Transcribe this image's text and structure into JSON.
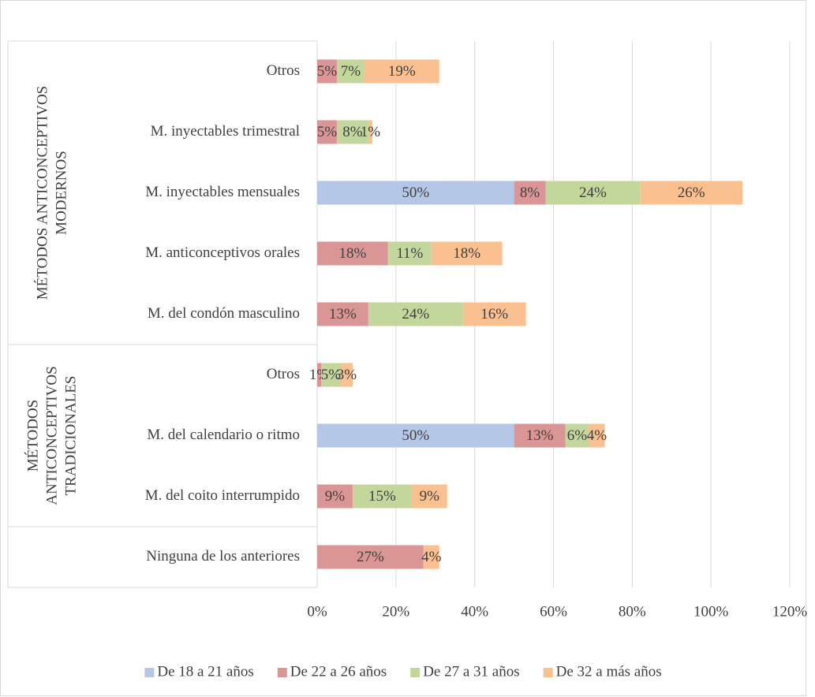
{
  "chart_data": {
    "type": "stacked-bar-horizontal",
    "groups": [
      {
        "label": "MÉTODOS ANTICONCEPTIVOS MODERNOS",
        "categories": [
          "Otros",
          "M. inyectables trimestral",
          "M. inyectables mensuales",
          "M. anticonceptivos orales",
          "M. del condón masculino"
        ]
      },
      {
        "label": "MÉTODOS ANTICONCEPTIVOS TRADICIONALES",
        "categories": [
          "Otros",
          "M. del calendario o ritmo",
          "M. del coito interrumpido"
        ]
      },
      {
        "label": null,
        "categories": [
          "Ninguna de los anteriores"
        ]
      }
    ],
    "series": [
      {
        "name": "De 18 a 21 años",
        "color": "#b4c7e7",
        "values": [
          null,
          null,
          50,
          null,
          null,
          null,
          50,
          null,
          null
        ]
      },
      {
        "name": "De 22 a 26 años",
        "color": "#da9694",
        "values": [
          5,
          5,
          8,
          18,
          13,
          1,
          13,
          9,
          27
        ]
      },
      {
        "name": "De 27 a 31 años",
        "color": "#c3d69b",
        "values": [
          7,
          8,
          24,
          11,
          24,
          5,
          6,
          15,
          null
        ]
      },
      {
        "name": "De 32 a más años",
        "color": "#fac090",
        "values": [
          19,
          1,
          26,
          18,
          16,
          3,
          4,
          9,
          4
        ]
      }
    ],
    "value_labels": [
      [
        null,
        null,
        "50%",
        null,
        null,
        null,
        "50%",
        null,
        null
      ],
      [
        "5%",
        "5%",
        "8%",
        "18%",
        "13%",
        "1%",
        "13%",
        "9%",
        "27%"
      ],
      [
        "7%",
        "8%",
        "24%",
        "11%",
        "24%",
        "5%",
        "6%",
        "15%",
        null
      ],
      [
        "19%",
        "1%",
        "26%",
        "18%",
        "16%",
        "3%",
        "4%",
        "9%",
        "4%"
      ]
    ],
    "xlim": [
      0,
      120
    ],
    "xticks": [
      {
        "value": 0,
        "label": "0%"
      },
      {
        "value": 20,
        "label": "20%"
      },
      {
        "value": 40,
        "label": "40%"
      },
      {
        "value": 60,
        "label": "60%"
      },
      {
        "value": 80,
        "label": "80%"
      },
      {
        "value": 100,
        "label": "100%"
      },
      {
        "value": 120,
        "label": "120%"
      }
    ],
    "grid": true,
    "legend": "bottom"
  }
}
